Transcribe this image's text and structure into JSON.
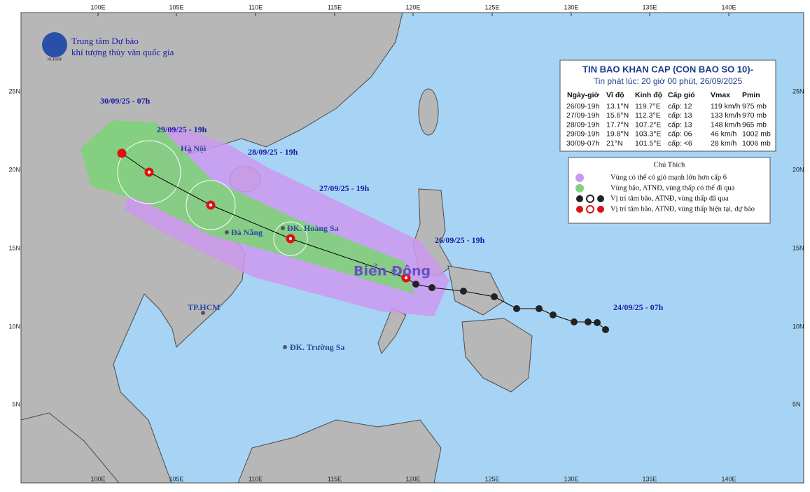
{
  "header": {
    "org_line1": "Trung tâm Dự báo",
    "org_line2": "khí tượng thủy văn quốc gia",
    "logo": "NCHMF"
  },
  "bulletin": {
    "title": "TIN BAO KHAN CAP (CON BAO SO 10)-",
    "issued": "Tin phát lúc: 20 giờ 00 phút, 26/09/2025",
    "columns": [
      "Ngày-giờ",
      "Vĩ độ",
      "Kinh độ",
      "Cấp gió",
      "Vmax",
      "Pmin"
    ],
    "rows": [
      [
        "26/09-19h",
        "13.1°N",
        "119.7°E",
        "cấp: 12",
        "119 km/h",
        "975 mb"
      ],
      [
        "27/09-19h",
        "15.6°N",
        "112.3°E",
        "cấp: 13",
        "133 km/h",
        "970 mb"
      ],
      [
        "28/09-19h",
        "17.7°N",
        "107.2°E",
        "cấp: 13",
        "148 km/h",
        "965 mb"
      ],
      [
        "29/09-19h",
        "19.8°N",
        "103.3°E",
        "cấp: 06",
        "46 km/h",
        "1002 mb"
      ],
      [
        "30/09-07h",
        "21°N",
        "101.5°E",
        "cấp: <6",
        "28 km/h",
        "1006 mb"
      ]
    ]
  },
  "legend": {
    "title": "Chú Thích",
    "items": [
      "Vùng có thể có gió mạnh lớn hơn cấp 6",
      "Vùng bão, ATNĐ, vùng thấp có thể đi qua",
      "Vị trí tâm bão, ATNĐ, vùng thấp đã qua",
      "Vị trí tâm bão, ATNĐ, vùng thấp hiện tại, dự báo"
    ]
  },
  "track_labels": [
    "30/09/25 - 07h",
    "29/09/25 - 19h",
    "28/09/25 - 19h",
    "27/09/25 - 19h",
    "26/09/25 - 19h",
    "24/09/25 - 07h"
  ],
  "places": [
    "Hà Nội",
    "Đà Nẵng",
    "ĐK. Hoàng Sa",
    "TP.HCM",
    "ĐK. Trường Sa"
  ],
  "sea_label": "Biển Đông",
  "axes": {
    "lon_labels": [
      "100E",
      "105E",
      "110E",
      "115E",
      "120E",
      "125E",
      "130E",
      "135E",
      "140E"
    ],
    "lat_labels": [
      "25N",
      "20N",
      "15N",
      "10N",
      "5N"
    ]
  }
}
